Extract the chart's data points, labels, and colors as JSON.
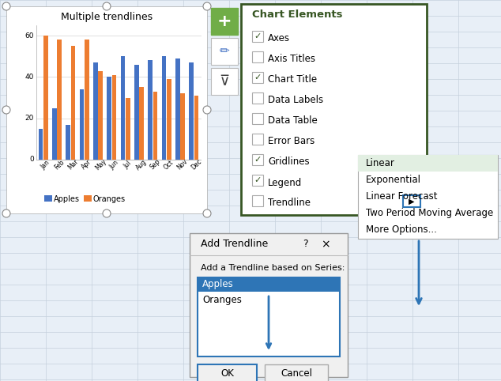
{
  "title": "Multiple trendlines",
  "months": [
    "Jan",
    "Feb",
    "Mar",
    "Apr",
    "May",
    "Jun",
    "Jul",
    "Aug",
    "Sep",
    "Oct",
    "Nov",
    "Dec"
  ],
  "apples": [
    15,
    25,
    17,
    34,
    47,
    40,
    50,
    46,
    48,
    50,
    49,
    47
  ],
  "oranges": [
    60,
    58,
    55,
    58,
    43,
    41,
    30,
    35,
    33,
    39,
    32,
    31
  ],
  "apple_color": "#4472C4",
  "orange_color": "#ED7D31",
  "excel_bg": "#E8EFF7",
  "grid_line_color": "#C5D0DC",
  "chart_elements": [
    "Axes",
    "Axis Titles",
    "Chart Title",
    "Data Labels",
    "Data Table",
    "Error Bars",
    "Gridlines",
    "Legend",
    "Trendline"
  ],
  "checked": [
    true,
    false,
    true,
    false,
    false,
    false,
    true,
    true,
    false
  ],
  "trendline_menu": [
    "Linear",
    "Exponential",
    "Linear Forecast",
    "Two Period Moving Average",
    "More Options..."
  ],
  "add_trendline_title": "Add Trendline",
  "add_trendline_text": "Add a Trendline based on Series:",
  "series_list": [
    "Apples",
    "Oranges"
  ],
  "ok_label": "OK",
  "cancel_label": "Cancel",
  "panel_border": "#375623",
  "sub_border": "#375623",
  "blue_sel": "#2E75B6",
  "btn_green": "#70AD47",
  "check_green": "#375623",
  "linear_highlight": "#E2EFE2"
}
